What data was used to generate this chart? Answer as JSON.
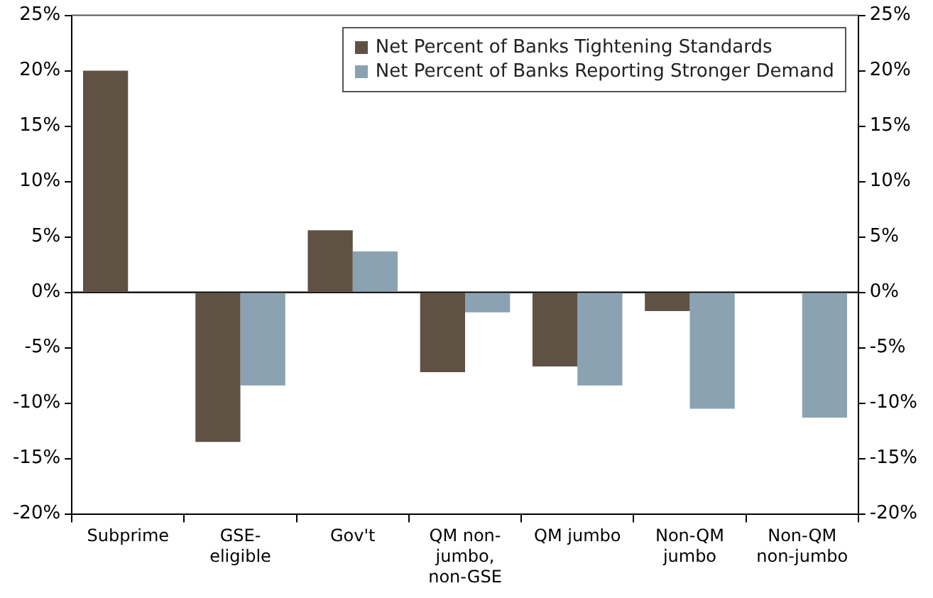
{
  "chart_data": {
    "type": "bar",
    "categories": [
      "Subprime",
      "GSE-eligible",
      "Gov't",
      "QM non-jumbo, non-GSE",
      "QM jumbo",
      "Non-QM jumbo",
      "Non-QM non-jumbo"
    ],
    "series": [
      {
        "name": "Net Percent of Banks Tightening Standards",
        "color": "#5f5245",
        "values": [
          20,
          -13.5,
          5.6,
          -7.2,
          -6.7,
          -1.7,
          null
        ]
      },
      {
        "name": "Net Percent of Banks Reporting Stronger Demand",
        "color": "#8aa2b2",
        "values": [
          null,
          -8.4,
          3.7,
          -1.8,
          -8.4,
          -10.5,
          -11.3
        ]
      }
    ],
    "ylim": [
      -20,
      25
    ],
    "yticks": [
      {
        "value": -20,
        "label": "-20%"
      },
      {
        "value": -15,
        "label": "-15%"
      },
      {
        "value": -10,
        "label": "-10%"
      },
      {
        "value": -5,
        "label": "-5%"
      },
      {
        "value": 0,
        "label": "0%"
      },
      {
        "value": 5,
        "label": "5%"
      },
      {
        "value": 10,
        "label": "10%"
      },
      {
        "value": 15,
        "label": "15%"
      },
      {
        "value": 20,
        "label": "20%"
      },
      {
        "value": 25,
        "label": "25%"
      }
    ],
    "y2lim": [
      -20,
      25
    ],
    "y2ticks": [
      {
        "value": -20,
        "label": "-20%"
      },
      {
        "value": -15,
        "label": "-15%"
      },
      {
        "value": -10,
        "label": "-10%"
      },
      {
        "value": -5,
        "label": "-5%"
      },
      {
        "value": 0,
        "label": "0%"
      },
      {
        "value": 5,
        "label": "5%"
      },
      {
        "value": 10,
        "label": "10%"
      },
      {
        "value": 15,
        "label": "15%"
      },
      {
        "value": 20,
        "label": "20%"
      },
      {
        "value": 25,
        "label": "25%"
      }
    ],
    "ref_lines": [
      {
        "axis": "y",
        "value": 0,
        "color": "#000000"
      }
    ],
    "grid": false,
    "legend": "top right"
  }
}
